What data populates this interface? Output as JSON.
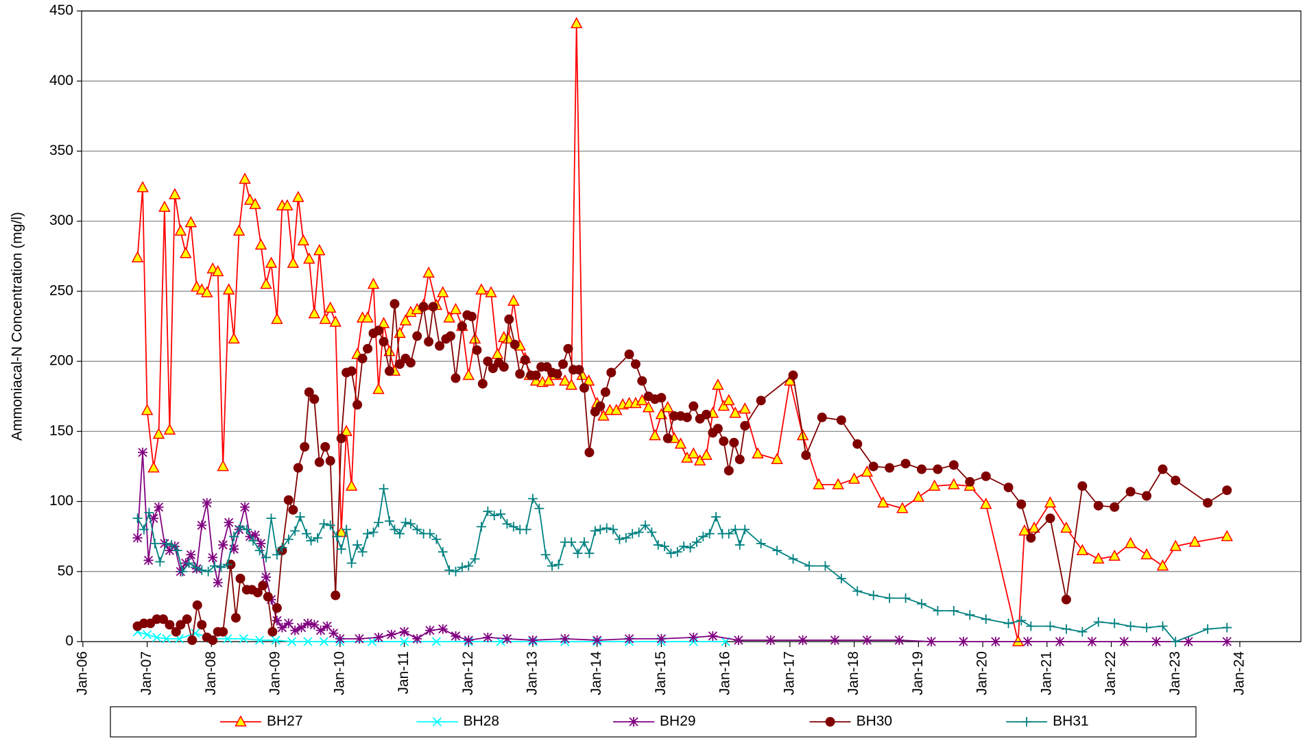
{
  "chart_data": {
    "type": "line",
    "y_label": "Ammoniacal-N Concentration (mg/l)",
    "xlim": [
      2005.98,
      2024.95
    ],
    "xticks": [
      {
        "value": 2006,
        "label": "Jan-06"
      },
      {
        "value": 2007,
        "label": "Jan-07"
      },
      {
        "value": 2008,
        "label": "Jan-08"
      },
      {
        "value": 2009,
        "label": "Jan-09"
      },
      {
        "value": 2010,
        "label": "Jan-10"
      },
      {
        "value": 2011,
        "label": "Jan-11"
      },
      {
        "value": 2012,
        "label": "Jan-12"
      },
      {
        "value": 2013,
        "label": "Jan-13"
      },
      {
        "value": 2014,
        "label": "Jan-14"
      },
      {
        "value": 2015,
        "label": "Jan-15"
      },
      {
        "value": 2016,
        "label": "Jan-16"
      },
      {
        "value": 2017,
        "label": "Jan-17"
      },
      {
        "value": 2018,
        "label": "Jan-18"
      },
      {
        "value": 2019,
        "label": "Jan-19"
      },
      {
        "value": 2020,
        "label": "Jan-20"
      },
      {
        "value": 2021,
        "label": "Jan-21"
      },
      {
        "value": 2022,
        "label": "Jan-22"
      },
      {
        "value": 2023,
        "label": "Jan-23"
      },
      {
        "value": 2024,
        "label": "Jan-24"
      }
    ],
    "ylim": [
      0,
      450
    ],
    "yticks": [
      0,
      50,
      100,
      150,
      200,
      250,
      300,
      350,
      400,
      450
    ],
    "grid": true,
    "legend": "bottom",
    "series": [
      {
        "name": "BH27",
        "color": "#ff0000",
        "marker": "triangle",
        "marker_fill": "#ffff00",
        "x": [
          2006.85,
          2006.93,
          2007.0,
          2007.1,
          2007.18,
          2007.27,
          2007.35,
          2007.43,
          2007.52,
          2007.6,
          2007.68,
          2007.77,
          2007.85,
          2007.93,
          2008.02,
          2008.1,
          2008.18,
          2008.27,
          2008.35,
          2008.43,
          2008.52,
          2008.6,
          2008.68,
          2008.77,
          2008.85,
          2008.93,
          2009.02,
          2009.1,
          2009.18,
          2009.27,
          2009.35,
          2009.43,
          2009.52,
          2009.6,
          2009.68,
          2009.77,
          2009.85,
          2009.93,
          2010.02,
          2010.1,
          2010.18,
          2010.27,
          2010.35,
          2010.43,
          2010.52,
          2010.6,
          2010.68,
          2010.77,
          2010.85,
          2010.93,
          2011.02,
          2011.1,
          2011.2,
          2011.3,
          2011.38,
          2011.5,
          2011.6,
          2011.7,
          2011.8,
          2011.9,
          2012.0,
          2012.1,
          2012.2,
          2012.35,
          2012.45,
          2012.55,
          2012.62,
          2012.7,
          2012.8,
          2012.88,
          2012.95,
          2013.05,
          2013.15,
          2013.25,
          2013.35,
          2013.5,
          2013.6,
          2013.68,
          2013.77,
          2013.87,
          2014.0,
          2014.1,
          2014.2,
          2014.3,
          2014.4,
          2014.5,
          2014.6,
          2014.7,
          2014.8,
          2014.9,
          2015.0,
          2015.1,
          2015.2,
          2015.3,
          2015.4,
          2015.5,
          2015.6,
          2015.7,
          2015.8,
          2015.88,
          2015.97,
          2016.05,
          2016.15,
          2016.3,
          2016.5,
          2016.8,
          2017.0,
          2017.2,
          2017.45,
          2017.75,
          2018.0,
          2018.2,
          2018.45,
          2018.75,
          2019.0,
          2019.25,
          2019.55,
          2019.8,
          2020.05,
          2020.55,
          2020.65,
          2020.8,
          2021.05,
          2021.3,
          2021.55,
          2021.8,
          2022.05,
          2022.3,
          2022.55,
          2022.8,
          2023.0,
          2023.3,
          2023.8
        ],
        "values": [
          274,
          324,
          165,
          124,
          148,
          310,
          151,
          319,
          293,
          277,
          299,
          253,
          251,
          249,
          266,
          264,
          125,
          251,
          216,
          293,
          330,
          315,
          312,
          283,
          255,
          270,
          230,
          311,
          311,
          270,
          317,
          286,
          273,
          234,
          279,
          230,
          238,
          228,
          78,
          150,
          111,
          205,
          231,
          231,
          255,
          180,
          227,
          207,
          193,
          220,
          229,
          235,
          237,
          240,
          263,
          240,
          249,
          231,
          237,
          225,
          190,
          216,
          251,
          249,
          205,
          217,
          216,
          243,
          211,
          202,
          190,
          186,
          185,
          186,
          190,
          186,
          183,
          441,
          190,
          186,
          170,
          161,
          165,
          165,
          169,
          170,
          170,
          172,
          167,
          147,
          162,
          167,
          145,
          141,
          131,
          134,
          129,
          133,
          163,
          183,
          168,
          172,
          163,
          166,
          134,
          130,
          186,
          147,
          112,
          112,
          116,
          121,
          99,
          95,
          103,
          111,
          112,
          111,
          98,
          0,
          79,
          81,
          99,
          81,
          65,
          59,
          61,
          70,
          62,
          54,
          68,
          71,
          75
        ]
      },
      {
        "name": "BH28",
        "color": "#00ffff",
        "marker": "x",
        "x": [
          2006.85,
          2007.0,
          2007.15,
          2007.3,
          2007.5,
          2007.75,
          2008.0,
          2008.25,
          2008.5,
          2008.75,
          2009.0,
          2009.25,
          2009.5,
          2009.75,
          2010.0,
          2010.5,
          2011.0,
          2011.5,
          2012.0,
          2012.5,
          2013.0,
          2013.5,
          2014.0,
          2014.5,
          2015.0,
          2015.5,
          2016.0
        ],
        "values": [
          7,
          5,
          3,
          2,
          2,
          6,
          2,
          2,
          2,
          1,
          1,
          0,
          0,
          0,
          0,
          0,
          0,
          0,
          0,
          0,
          0,
          0,
          0,
          0,
          0,
          0,
          0
        ]
      },
      {
        "name": "BH29",
        "color": "#800080",
        "marker": "star",
        "x": [
          2006.85,
          2006.93,
          2007.02,
          2007.1,
          2007.18,
          2007.27,
          2007.35,
          2007.43,
          2007.52,
          2007.6,
          2007.68,
          2007.77,
          2007.85,
          2007.93,
          2008.02,
          2008.1,
          2008.18,
          2008.27,
          2008.35,
          2008.43,
          2008.52,
          2008.6,
          2008.68,
          2008.77,
          2008.85,
          2008.93,
          2009.02,
          2009.1,
          2009.2,
          2009.3,
          2009.4,
          2009.5,
          2009.6,
          2009.7,
          2009.8,
          2009.9,
          2010.0,
          2010.3,
          2010.6,
          2010.8,
          2011.0,
          2011.2,
          2011.4,
          2011.6,
          2011.8,
          2012.0,
          2012.3,
          2012.6,
          2013.0,
          2013.5,
          2014.0,
          2014.5,
          2015.0,
          2015.5,
          2015.8,
          2016.2,
          2016.7,
          2017.2,
          2017.7,
          2018.2,
          2018.7,
          2019.2,
          2019.7,
          2020.2,
          2020.7,
          2021.2,
          2021.7,
          2022.2,
          2022.7,
          2023.2,
          2023.8
        ],
        "values": [
          74,
          135,
          58,
          88,
          96,
          70,
          65,
          68,
          50,
          56,
          62,
          52,
          83,
          99,
          60,
          42,
          69,
          85,
          66,
          80,
          96,
          75,
          76,
          70,
          46,
          30,
          15,
          10,
          13,
          8,
          10,
          13,
          12,
          8,
          11,
          6,
          2,
          2,
          3,
          5,
          7,
          2,
          8,
          9,
          4,
          1,
          3,
          2,
          1,
          2,
          1,
          2,
          2,
          3,
          4,
          1,
          1,
          1,
          1,
          1,
          1,
          0,
          0,
          0,
          0,
          0,
          0,
          0,
          0,
          0,
          0
        ]
      },
      {
        "name": "BH30",
        "color": "#800000",
        "marker": "circle",
        "x": [
          2006.85,
          2006.95,
          2007.05,
          2007.15,
          2007.25,
          2007.35,
          2007.45,
          2007.52,
          2007.62,
          2007.7,
          2007.78,
          2007.85,
          2007.93,
          2008.02,
          2008.1,
          2008.18,
          2008.3,
          2008.38,
          2008.45,
          2008.55,
          2008.63,
          2008.72,
          2008.8,
          2008.88,
          2008.95,
          2009.02,
          2009.1,
          2009.2,
          2009.27,
          2009.35,
          2009.45,
          2009.52,
          2009.6,
          2009.68,
          2009.77,
          2009.85,
          2009.93,
          2010.02,
          2010.1,
          2010.18,
          2010.27,
          2010.35,
          2010.43,
          2010.52,
          2010.6,
          2010.68,
          2010.77,
          2010.85,
          2010.93,
          2011.02,
          2011.1,
          2011.2,
          2011.3,
          2011.38,
          2011.45,
          2011.55,
          2011.65,
          2011.72,
          2011.8,
          2011.9,
          2011.98,
          2012.05,
          2012.13,
          2012.22,
          2012.3,
          2012.38,
          2012.47,
          2012.55,
          2012.63,
          2012.72,
          2012.8,
          2012.88,
          2012.97,
          2013.05,
          2013.13,
          2013.22,
          2013.3,
          2013.38,
          2013.47,
          2013.55,
          2013.63,
          2013.72,
          2013.8,
          2013.88,
          2013.97,
          2014.05,
          2014.13,
          2014.22,
          2014.5,
          2014.6,
          2014.7,
          2014.8,
          2014.9,
          2015.0,
          2015.1,
          2015.2,
          2015.3,
          2015.4,
          2015.5,
          2015.6,
          2015.7,
          2015.8,
          2015.88,
          2015.97,
          2016.05,
          2016.13,
          2016.22,
          2016.3,
          2016.55,
          2017.05,
          2017.25,
          2017.5,
          2017.8,
          2018.05,
          2018.3,
          2018.55,
          2018.8,
          2019.05,
          2019.3,
          2019.55,
          2019.8,
          2020.05,
          2020.4,
          2020.6,
          2020.75,
          2021.05,
          2021.3,
          2021.55,
          2021.8,
          2022.05,
          2022.3,
          2022.55,
          2022.8,
          2023.0,
          2023.5,
          2023.8
        ],
        "values": [
          11,
          13,
          13,
          16,
          16,
          12,
          7,
          12,
          16,
          1,
          26,
          12,
          3,
          1,
          7,
          7,
          55,
          17,
          45,
          37,
          37,
          35,
          40,
          32,
          7,
          24,
          65,
          101,
          94,
          124,
          139,
          178,
          173,
          128,
          139,
          129,
          33,
          145,
          192,
          193,
          169,
          202,
          209,
          220,
          222,
          214,
          193,
          241,
          198,
          202,
          199,
          218,
          239,
          214,
          239,
          211,
          216,
          218,
          188,
          225,
          233,
          232,
          208,
          184,
          200,
          195,
          199,
          196,
          230,
          212,
          191,
          201,
          190,
          190,
          196,
          196,
          192,
          191,
          198,
          209,
          194,
          194,
          181,
          135,
          164,
          168,
          178,
          192,
          205,
          198,
          186,
          175,
          173,
          174,
          145,
          161,
          161,
          160,
          168,
          159,
          162,
          149,
          152,
          143,
          122,
          142,
          130,
          154,
          172,
          190,
          133,
          160,
          158,
          141,
          125,
          124,
          127,
          123,
          123,
          126,
          114,
          118,
          110,
          98,
          74,
          88,
          30,
          111,
          97,
          96,
          107,
          104,
          123,
          115,
          99,
          108
        ]
      },
      {
        "name": "BH31",
        "color": "#008080",
        "marker": "plus",
        "x": [
          2006.85,
          2006.95,
          2007.03,
          2007.12,
          2007.2,
          2007.3,
          2007.38,
          2007.47,
          2007.55,
          2007.65,
          2007.75,
          2007.85,
          2007.95,
          2008.05,
          2008.15,
          2008.25,
          2008.35,
          2008.45,
          2008.55,
          2008.65,
          2008.75,
          2008.85,
          2008.93,
          2009.02,
          2009.1,
          2009.2,
          2009.3,
          2009.38,
          2009.48,
          2009.55,
          2009.65,
          2009.75,
          2009.85,
          2009.95,
          2010.02,
          2010.1,
          2010.18,
          2010.27,
          2010.35,
          2010.43,
          2010.52,
          2010.6,
          2010.68,
          2010.77,
          2010.85,
          2010.93,
          2011.02,
          2011.1,
          2011.2,
          2011.3,
          2011.4,
          2011.5,
          2011.6,
          2011.7,
          2011.8,
          2011.9,
          2012.0,
          2012.1,
          2012.2,
          2012.3,
          2012.4,
          2012.5,
          2012.6,
          2012.7,
          2012.8,
          2012.9,
          2013.0,
          2013.1,
          2013.2,
          2013.3,
          2013.4,
          2013.5,
          2013.6,
          2013.7,
          2013.8,
          2013.88,
          2013.97,
          2014.05,
          2014.15,
          2014.25,
          2014.35,
          2014.45,
          2014.55,
          2014.65,
          2014.75,
          2014.85,
          2014.95,
          2015.05,
          2015.15,
          2015.25,
          2015.35,
          2015.45,
          2015.55,
          2015.65,
          2015.75,
          2015.85,
          2015.95,
          2016.05,
          2016.15,
          2016.22,
          2016.3,
          2016.55,
          2016.8,
          2017.05,
          2017.3,
          2017.55,
          2017.8,
          2018.05,
          2018.3,
          2018.55,
          2018.8,
          2019.05,
          2019.3,
          2019.55,
          2019.8,
          2020.05,
          2020.4,
          2020.6,
          2020.75,
          2021.05,
          2021.3,
          2021.55,
          2021.8,
          2022.05,
          2022.3,
          2022.55,
          2022.8,
          2023.0,
          2023.5,
          2023.8
        ],
        "values": [
          88,
          80,
          92,
          70,
          57,
          70,
          69,
          65,
          50,
          56,
          53,
          51,
          50,
          54,
          53,
          55,
          75,
          82,
          80,
          72,
          65,
          60,
          88,
          62,
          67,
          73,
          79,
          89,
          77,
          72,
          74,
          84,
          83,
          75,
          66,
          80,
          56,
          69,
          64,
          77,
          78,
          85,
          109,
          86,
          80,
          77,
          85,
          84,
          80,
          77,
          77,
          73,
          64,
          51,
          50,
          53,
          54,
          59,
          82,
          93,
          90,
          91,
          84,
          82,
          80,
          80,
          102,
          95,
          62,
          54,
          55,
          71,
          71,
          63,
          71,
          63,
          79,
          80,
          81,
          80,
          73,
          74,
          77,
          78,
          83,
          78,
          69,
          68,
          63,
          64,
          68,
          67,
          71,
          75,
          77,
          89,
          77,
          77,
          80,
          69,
          80,
          70,
          65,
          59,
          54,
          54,
          45,
          36,
          33,
          31,
          31,
          27,
          22,
          22,
          19,
          16,
          13,
          15,
          11,
          11,
          9,
          7,
          14,
          13,
          11,
          10,
          11,
          0,
          9,
          10
        ]
      }
    ]
  }
}
